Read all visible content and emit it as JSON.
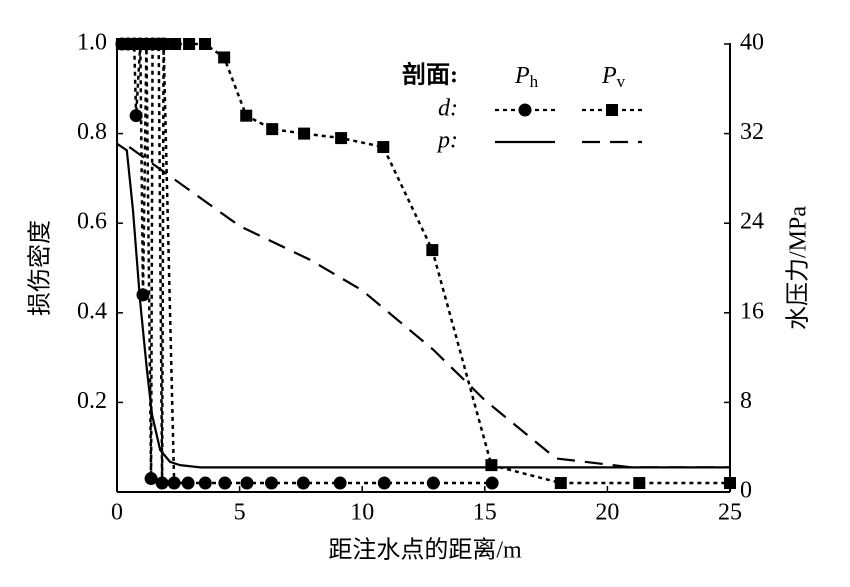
{
  "chart_data": {
    "type": "line",
    "xlabel": "距注水点的距离/m",
    "ylabel": "损伤密度",
    "y2label": "水压力/MPa",
    "xlim": [
      0,
      25
    ],
    "xticks": [
      0,
      5,
      10,
      15,
      20,
      25
    ],
    "ylim": [
      0,
      1
    ],
    "yticks": [
      0.2,
      0.4,
      0.6,
      0.8,
      {
        "value": 1,
        "label": "1.0"
      }
    ],
    "y2lim": [
      0,
      40
    ],
    "y2ticks": [
      0,
      8,
      16,
      24,
      32,
      40
    ],
    "legend": {
      "header": "剖面:",
      "columns": [
        {
          "base": "P",
          "sub": "h"
        },
        {
          "base": "P",
          "sub": "v"
        }
      ],
      "rows": [
        "d:",
        "p:"
      ]
    },
    "series": [
      {
        "color": "#000000",
        "marker": "circle",
        "dash": "dotted",
        "axis": "y",
        "x": [
          0.2,
          0.45,
          0.7,
          0.95,
          1.2,
          1.45,
          1.7,
          1.9,
          0.78,
          1.06,
          1.39,
          1.84,
          2.33,
          2.9,
          3.6,
          4.4,
          5.3,
          6.3,
          7.6,
          9.1,
          10.9,
          12.9,
          15.3
        ],
        "values": [
          1,
          1,
          1,
          1,
          1,
          1,
          1,
          1,
          0.84,
          0.44,
          0.03,
          0.02,
          0.02,
          0.02,
          0.02,
          0.02,
          0.02,
          0.02,
          0.02,
          0.02,
          0.02,
          0.02,
          0.02
        ]
      },
      {
        "color": "#000000",
        "marker": "square",
        "dash": "dotted",
        "axis": "y",
        "x": [
          0.2,
          0.45,
          0.73,
          1.0,
          1.3,
          1.6,
          1.88,
          2.37,
          2.94,
          3.59,
          4.37,
          5.27,
          6.33,
          7.63,
          9.14,
          10.86,
          12.86,
          15.27,
          18.1,
          21.3,
          25
        ],
        "values": [
          1,
          1,
          1,
          1,
          1,
          1,
          1,
          1,
          1,
          1,
          0.97,
          0.84,
          0.81,
          0.8,
          0.79,
          0.77,
          0.54,
          0.06,
          0.02,
          0.02,
          0.02
        ]
      },
      {
        "color": "#000000",
        "marker": "none",
        "dash": "solid",
        "axis": "y2",
        "x": [
          0,
          0.4,
          0.65,
          0.94,
          1.22,
          1.43,
          1.76,
          2.16,
          2.57,
          3.4,
          25
        ],
        "values": [
          31.1,
          30.5,
          25.2,
          17.1,
          10.9,
          6.9,
          3.75,
          2.7,
          2.4,
          2.2,
          2.2
        ]
      },
      {
        "color": "#000000",
        "marker": "none",
        "dash": "dashed",
        "axis": "y2",
        "x": [
          0.5,
          5,
          7.9,
          10,
          12.9,
          15,
          17.9,
          21,
          25
        ],
        "values": [
          30.8,
          23.75,
          20.7,
          18.0,
          12.7,
          8.2,
          3.0,
          2.2,
          2.2
        ]
      }
    ]
  }
}
